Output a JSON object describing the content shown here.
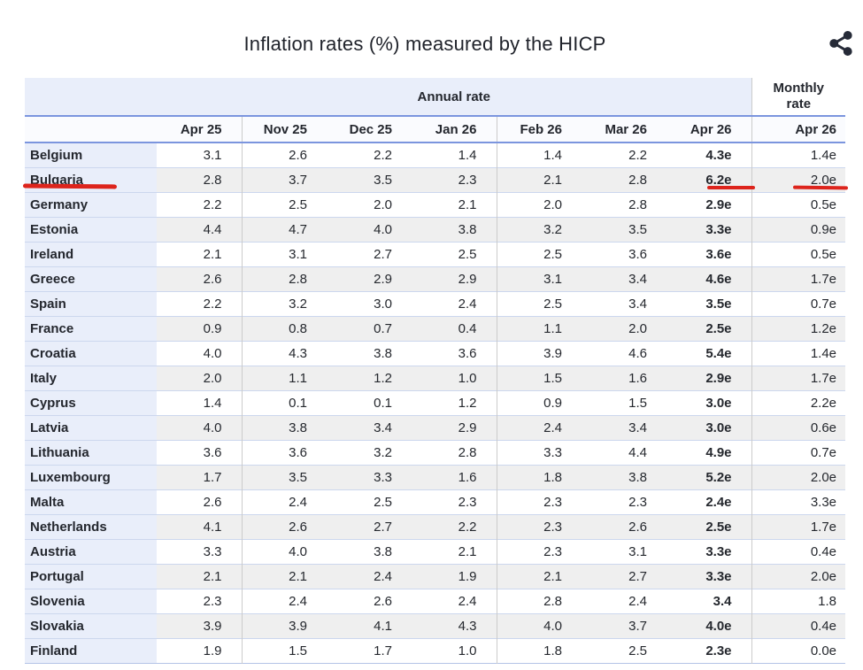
{
  "header": {
    "title": "Inflation rates (%) measured by the HICP",
    "share_icon": "share"
  },
  "chart_data": {
    "type": "table",
    "title": "Inflation rates (%) measured by the HICP",
    "group_headers": {
      "annual": "Annual rate",
      "monthly": "Monthly rate"
    },
    "annual_columns": [
      "Apr 25",
      "Nov 25",
      "Dec 25",
      "Jan 26",
      "Feb 26",
      "Mar 26",
      "Apr 26"
    ],
    "monthly_column": "Apr 26",
    "rows": [
      {
        "country": "Belgium",
        "annual": [
          "3.1",
          "2.6",
          "2.2",
          "1.4",
          "1.4",
          "2.2",
          "4.3e"
        ],
        "monthly": "1.4e"
      },
      {
        "country": "Bulgaria",
        "annual": [
          "2.8",
          "3.7",
          "3.5",
          "2.3",
          "2.1",
          "2.8",
          "6.2e"
        ],
        "monthly": "2.0e"
      },
      {
        "country": "Germany",
        "annual": [
          "2.2",
          "2.5",
          "2.0",
          "2.1",
          "2.0",
          "2.8",
          "2.9e"
        ],
        "monthly": "0.5e"
      },
      {
        "country": "Estonia",
        "annual": [
          "4.4",
          "4.7",
          "4.0",
          "3.8",
          "3.2",
          "3.5",
          "3.3e"
        ],
        "monthly": "0.9e"
      },
      {
        "country": "Ireland",
        "annual": [
          "2.1",
          "3.1",
          "2.7",
          "2.5",
          "2.5",
          "3.6",
          "3.6e"
        ],
        "monthly": "0.5e"
      },
      {
        "country": "Greece",
        "annual": [
          "2.6",
          "2.8",
          "2.9",
          "2.9",
          "3.1",
          "3.4",
          "4.6e"
        ],
        "monthly": "1.7e"
      },
      {
        "country": "Spain",
        "annual": [
          "2.2",
          "3.2",
          "3.0",
          "2.4",
          "2.5",
          "3.4",
          "3.5e"
        ],
        "monthly": "0.7e"
      },
      {
        "country": "France",
        "annual": [
          "0.9",
          "0.8",
          "0.7",
          "0.4",
          "1.1",
          "2.0",
          "2.5e"
        ],
        "monthly": "1.2e"
      },
      {
        "country": "Croatia",
        "annual": [
          "4.0",
          "4.3",
          "3.8",
          "3.6",
          "3.9",
          "4.6",
          "5.4e"
        ],
        "monthly": "1.4e"
      },
      {
        "country": "Italy",
        "annual": [
          "2.0",
          "1.1",
          "1.2",
          "1.0",
          "1.5",
          "1.6",
          "2.9e"
        ],
        "monthly": "1.7e"
      },
      {
        "country": "Cyprus",
        "annual": [
          "1.4",
          "0.1",
          "0.1",
          "1.2",
          "0.9",
          "1.5",
          "3.0e"
        ],
        "monthly": "2.2e"
      },
      {
        "country": "Latvia",
        "annual": [
          "4.0",
          "3.8",
          "3.4",
          "2.9",
          "2.4",
          "3.4",
          "3.0e"
        ],
        "monthly": "0.6e"
      },
      {
        "country": "Lithuania",
        "annual": [
          "3.6",
          "3.6",
          "3.2",
          "2.8",
          "3.3",
          "4.4",
          "4.9e"
        ],
        "monthly": "0.7e"
      },
      {
        "country": "Luxembourg",
        "annual": [
          "1.7",
          "3.5",
          "3.3",
          "1.6",
          "1.8",
          "3.8",
          "5.2e"
        ],
        "monthly": "2.0e"
      },
      {
        "country": "Malta",
        "annual": [
          "2.6",
          "2.4",
          "2.5",
          "2.3",
          "2.3",
          "2.3",
          "2.4e"
        ],
        "monthly": "3.3e"
      },
      {
        "country": "Netherlands",
        "annual": [
          "4.1",
          "2.6",
          "2.7",
          "2.2",
          "2.3",
          "2.6",
          "2.5e"
        ],
        "monthly": "1.7e"
      },
      {
        "country": "Austria",
        "annual": [
          "3.3",
          "4.0",
          "3.8",
          "2.1",
          "2.3",
          "3.1",
          "3.3e"
        ],
        "monthly": "0.4e"
      },
      {
        "country": "Portugal",
        "annual": [
          "2.1",
          "2.1",
          "2.4",
          "1.9",
          "2.1",
          "2.7",
          "3.3e"
        ],
        "monthly": "2.0e"
      },
      {
        "country": "Slovenia",
        "annual": [
          "2.3",
          "2.4",
          "2.6",
          "2.4",
          "2.8",
          "2.4",
          "3.4"
        ],
        "monthly": "1.8"
      },
      {
        "country": "Slovakia",
        "annual": [
          "3.9",
          "3.9",
          "4.1",
          "4.3",
          "4.0",
          "3.7",
          "4.0e"
        ],
        "monthly": "0.4e"
      },
      {
        "country": "Finland",
        "annual": [
          "1.9",
          "1.5",
          "1.7",
          "1.0",
          "1.8",
          "2.5",
          "2.3e"
        ],
        "monthly": "0.0e"
      }
    ],
    "annotations": {
      "style": "red-underline",
      "underlined_row": "Bulgaria",
      "underlined_values": [
        "6.2e",
        "2.0e"
      ]
    }
  },
  "colors": {
    "accent_blue_border": "#7b95de",
    "header_lavender": "#e9eefa",
    "stripe_gray": "#efefef",
    "annotation_red": "#dd241c",
    "grid_gray": "#cbcbcb"
  }
}
